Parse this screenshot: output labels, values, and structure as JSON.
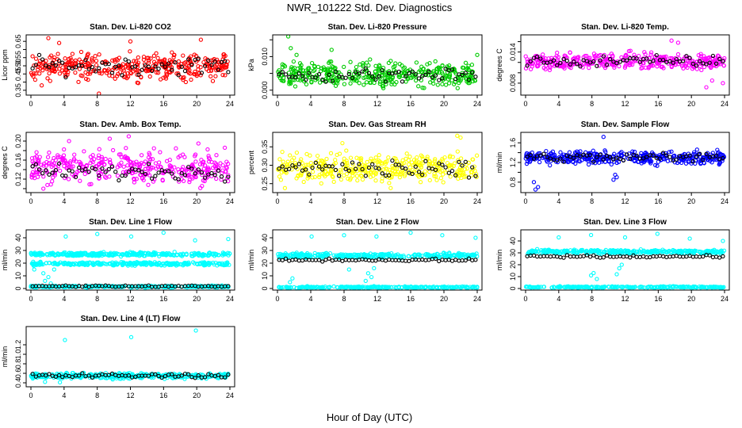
{
  "figure": {
    "title": "NWR_101222  Std. Dev. Diagnostics",
    "xlabel": "Hour of Day (UTC)"
  },
  "colors": {
    "red": "#ff0000",
    "green": "#00cc00",
    "magenta": "#ff00ff",
    "yellow": "#ffff00",
    "blue": "#0000ff",
    "cyan": "#00ffff",
    "black": "#000000"
  },
  "chart_data": [
    {
      "type": "scatter",
      "title": "Stan. Dev. Li-820 CO2",
      "ylabel": "Licor ppm",
      "color": "red",
      "xlim": [
        0,
        24
      ],
      "ylim": [
        0.33,
        0.68
      ],
      "xticks": [
        0,
        4,
        8,
        12,
        16,
        20,
        24
      ],
      "yticks": [
        0.35,
        0.4,
        0.45,
        0.5,
        0.55,
        0.6,
        0.65
      ],
      "ytick_labels": [
        "0.35",
        "",
        "0.45",
        "0.50",
        "0.55",
        "",
        "0.65"
      ],
      "bands": [
        {
          "color": "red",
          "center": 0.495,
          "spread": 0.065,
          "n": 360
        }
      ],
      "black": {
        "center": 0.5,
        "spread": 0.045,
        "n": 60
      },
      "outliers": [
        [
          2.1,
          0.67
        ],
        [
          3.4,
          0.64
        ],
        [
          8.2,
          0.33
        ],
        [
          12.0,
          0.65
        ],
        [
          20.5,
          0.66
        ],
        [
          1.3,
          0.38
        ]
      ]
    },
    {
      "type": "scatter",
      "title": "Stan. Dev. Li-820 Pressure",
      "ylabel": "kPa",
      "color": "green",
      "xlim": [
        0,
        24
      ],
      "ylim": [
        -0.001,
        0.016
      ],
      "xticks": [
        0,
        4,
        8,
        12,
        16,
        20,
        24
      ],
      "yticks": [
        0.0,
        0.005,
        0.01,
        0.015
      ],
      "ytick_labels": [
        "0.000",
        "",
        "0.010",
        ""
      ],
      "bands": [
        {
          "color": "green",
          "center": 0.0045,
          "spread": 0.003,
          "n": 380
        }
      ],
      "black": {
        "center": 0.0045,
        "spread": 0.0018,
        "n": 60
      },
      "outliers": [
        [
          1.3,
          0.016
        ],
        [
          1.6,
          0.0125
        ],
        [
          2.3,
          0.0105
        ],
        [
          24.0,
          0.0105
        ],
        [
          6.5,
          0.012
        ]
      ]
    },
    {
      "type": "scatter",
      "title": "Stan. Dev. Li-820 Temp.",
      "ylabel": "degrees C",
      "color": "magenta",
      "xlim": [
        0,
        24
      ],
      "ylim": [
        0.006,
        0.017
      ],
      "xticks": [
        0,
        4,
        8,
        12,
        16,
        20,
        24
      ],
      "yticks": [
        0.008,
        0.01,
        0.012,
        0.014,
        0.016
      ],
      "ytick_labels": [
        "0.008",
        "",
        "",
        "0.014",
        ""
      ],
      "bands": [
        {
          "color": "magenta",
          "center": 0.0122,
          "spread": 0.0013,
          "n": 360
        }
      ],
      "black": {
        "center": 0.0122,
        "spread": 0.0009,
        "n": 60
      },
      "outliers": [
        [
          17.6,
          0.0162
        ],
        [
          18.4,
          0.0158
        ],
        [
          22.5,
          0.0085
        ],
        [
          23.8,
          0.008
        ],
        [
          21.8,
          0.0072
        ]
      ]
    },
    {
      "type": "scatter",
      "title": "Stan. Dev. Amb. Box Temp.",
      "ylabel": "degrees C",
      "color": "magenta",
      "xlim": [
        0,
        24
      ],
      "ylim": [
        0.095,
        0.215
      ],
      "xticks": [
        0,
        4,
        8,
        12,
        16,
        20,
        24
      ],
      "yticks": [
        0.1,
        0.12,
        0.14,
        0.16,
        0.18,
        0.2
      ],
      "ytick_labels": [
        "",
        "0.12",
        "",
        "0.16",
        "",
        "0.20"
      ],
      "bands": [
        {
          "color": "magenta",
          "center": 0.145,
          "spread": 0.028,
          "n": 360
        }
      ],
      "black": {
        "center": 0.135,
        "spread": 0.013,
        "n": 60
      },
      "outliers": [
        [
          11.8,
          0.21
        ],
        [
          9.5,
          0.205
        ],
        [
          4.6,
          0.2
        ],
        [
          20.2,
          0.195
        ],
        [
          1.5,
          0.1
        ]
      ]
    },
    {
      "type": "scatter",
      "title": "Stan. Dev. Gas Stream RH",
      "ylabel": "percent",
      "color": "yellow",
      "xlim": [
        0,
        24
      ],
      "ylim": [
        0.23,
        0.385
      ],
      "xticks": [
        0,
        4,
        8,
        12,
        16,
        20,
        24
      ],
      "yticks": [
        0.25,
        0.3,
        0.35
      ],
      "ytick_labels": [
        "0.25",
        "0.30",
        "0.35"
      ],
      "bands": [
        {
          "color": "yellow",
          "center": 0.293,
          "spread": 0.03,
          "n": 360
        }
      ],
      "black": {
        "center": 0.29,
        "spread": 0.022,
        "n": 60
      },
      "outliers": [
        [
          21.6,
          0.38
        ],
        [
          22.0,
          0.375
        ],
        [
          0.9,
          0.238
        ],
        [
          7.8,
          0.36
        ],
        [
          13.6,
          0.238
        ]
      ]
    },
    {
      "type": "scatter",
      "title": "Stan. Dev. Sample Flow",
      "ylabel": "ml/min",
      "color": "blue",
      "xlim": [
        0,
        24
      ],
      "ylim": [
        0.62,
        1.78
      ],
      "xticks": [
        0,
        4,
        8,
        12,
        16,
        20,
        24
      ],
      "yticks": [
        0.8,
        1.0,
        1.2,
        1.4,
        1.6
      ],
      "ytick_labels": [
        "0.8",
        "",
        "1.2",
        "",
        "1.6"
      ],
      "bands": [
        {
          "color": "blue",
          "center": 1.3,
          "spread": 0.11,
          "n": 380
        }
      ],
      "black": {
        "center": 1.3,
        "spread": 0.08,
        "n": 60
      },
      "outliers": [
        [
          1.2,
          0.65
        ],
        [
          1.5,
          0.7
        ],
        [
          1.0,
          0.8
        ],
        [
          9.4,
          1.72
        ],
        [
          11.0,
          0.9
        ],
        [
          10.6,
          0.85
        ],
        [
          10.8,
          0.95
        ]
      ]
    },
    {
      "type": "scatter",
      "title": "Stan. Dev. Line 1 Flow",
      "ylabel": "ml/min",
      "color": "cyan",
      "xlim": [
        0,
        24
      ],
      "ylim": [
        0,
        45
      ],
      "xticks": [
        0,
        4,
        8,
        12,
        16,
        20,
        24
      ],
      "yticks": [
        0,
        10,
        20,
        30,
        40
      ],
      "ytick_labels": [
        "0",
        "10",
        "20",
        "30",
        "40"
      ],
      "bands": [
        {
          "color": "cyan",
          "center": 27,
          "spread": 1.2,
          "n": 300
        },
        {
          "color": "cyan",
          "center": 19.5,
          "spread": 1.0,
          "n": 300
        },
        {
          "color": "cyan",
          "center": 1.5,
          "spread": 0.6,
          "n": 250
        }
      ],
      "black": {
        "center": 1.8,
        "spread": 0.5,
        "n": 60
      },
      "outliers": [
        [
          4.2,
          41
        ],
        [
          8.0,
          43
        ],
        [
          12.1,
          41
        ],
        [
          16.0,
          44
        ],
        [
          19.8,
          38
        ],
        [
          23.8,
          39
        ],
        [
          1.5,
          12
        ],
        [
          1.7,
          6
        ],
        [
          2.1,
          9
        ],
        [
          2.4,
          4
        ],
        [
          2.8,
          15
        ],
        [
          6.0,
          27
        ],
        [
          0.4,
          15
        ]
      ]
    },
    {
      "type": "scatter",
      "title": "Stan. Dev. Line 2 Flow",
      "ylabel": "ml/min",
      "color": "cyan",
      "xlim": [
        0,
        24
      ],
      "ylim": [
        0,
        45
      ],
      "xticks": [
        0,
        4,
        8,
        12,
        16,
        20,
        24
      ],
      "yticks": [
        0,
        10,
        20,
        30,
        40
      ],
      "ytick_labels": [
        "0",
        "10",
        "20",
        "30",
        "40"
      ],
      "bands": [
        {
          "color": "cyan",
          "center": 26,
          "spread": 1.5,
          "n": 320
        },
        {
          "color": "cyan",
          "center": 1.0,
          "spread": 0.5,
          "n": 250
        }
      ],
      "black": {
        "center": 22.5,
        "spread": 0.8,
        "n": 60
      },
      "outliers": [
        [
          4.1,
          41
        ],
        [
          8.0,
          42
        ],
        [
          11.9,
          41
        ],
        [
          16.0,
          44
        ],
        [
          19.8,
          42
        ],
        [
          23.8,
          40
        ],
        [
          10.6,
          6
        ],
        [
          10.9,
          12
        ],
        [
          11.3,
          9
        ],
        [
          11.6,
          16
        ],
        [
          1.5,
          5
        ],
        [
          1.8,
          8
        ],
        [
          8.6,
          15
        ]
      ]
    },
    {
      "type": "scatter",
      "title": "Stan. Dev. Line 3 Flow",
      "ylabel": "ml/min",
      "color": "cyan",
      "xlim": [
        0,
        24
      ],
      "ylim": [
        0,
        48
      ],
      "xticks": [
        0,
        4,
        8,
        12,
        16,
        20,
        24
      ],
      "yticks": [
        0,
        10,
        20,
        30,
        40
      ],
      "ytick_labels": [
        "0",
        "10",
        "20",
        "30",
        "40"
      ],
      "bands": [
        {
          "color": "cyan",
          "center": 31,
          "spread": 1.3,
          "n": 320
        },
        {
          "color": "cyan",
          "center": 1.2,
          "spread": 0.5,
          "n": 250
        }
      ],
      "black": {
        "center": 27,
        "spread": 0.8,
        "n": 60
      },
      "outliers": [
        [
          4.0,
          43
        ],
        [
          7.9,
          45
        ],
        [
          12.0,
          43
        ],
        [
          15.9,
          46
        ],
        [
          19.8,
          42
        ],
        [
          23.8,
          40
        ],
        [
          7.9,
          11
        ],
        [
          8.2,
          13
        ],
        [
          11.0,
          12
        ],
        [
          11.3,
          17
        ],
        [
          11.6,
          20
        ],
        [
          8.6,
          8
        ]
      ]
    },
    {
      "type": "scatter",
      "title": "Stan. Dev. Line 4 (LT) Flow",
      "ylabel": "ml/min",
      "color": "cyan",
      "xlim": [
        0,
        24
      ],
      "ylim": [
        0.35,
        1.55
      ],
      "xticks": [
        0,
        4,
        8,
        12,
        16,
        20,
        24
      ],
      "yticks": [
        0.4,
        0.6,
        0.8,
        1.0,
        1.2
      ],
      "ytick_labels": [
        "0.4",
        "0.6",
        "0.8",
        "1.0",
        "1.2"
      ],
      "bands": [
        {
          "color": "cyan",
          "center": 0.545,
          "spread": 0.045,
          "n": 340
        }
      ],
      "black": {
        "center": 0.55,
        "spread": 0.04,
        "n": 60
      },
      "outliers": [
        [
          4.1,
          1.3
        ],
        [
          12.1,
          1.36
        ],
        [
          19.9,
          1.5
        ],
        [
          1.7,
          0.42
        ],
        [
          3.5,
          0.41
        ]
      ]
    }
  ]
}
